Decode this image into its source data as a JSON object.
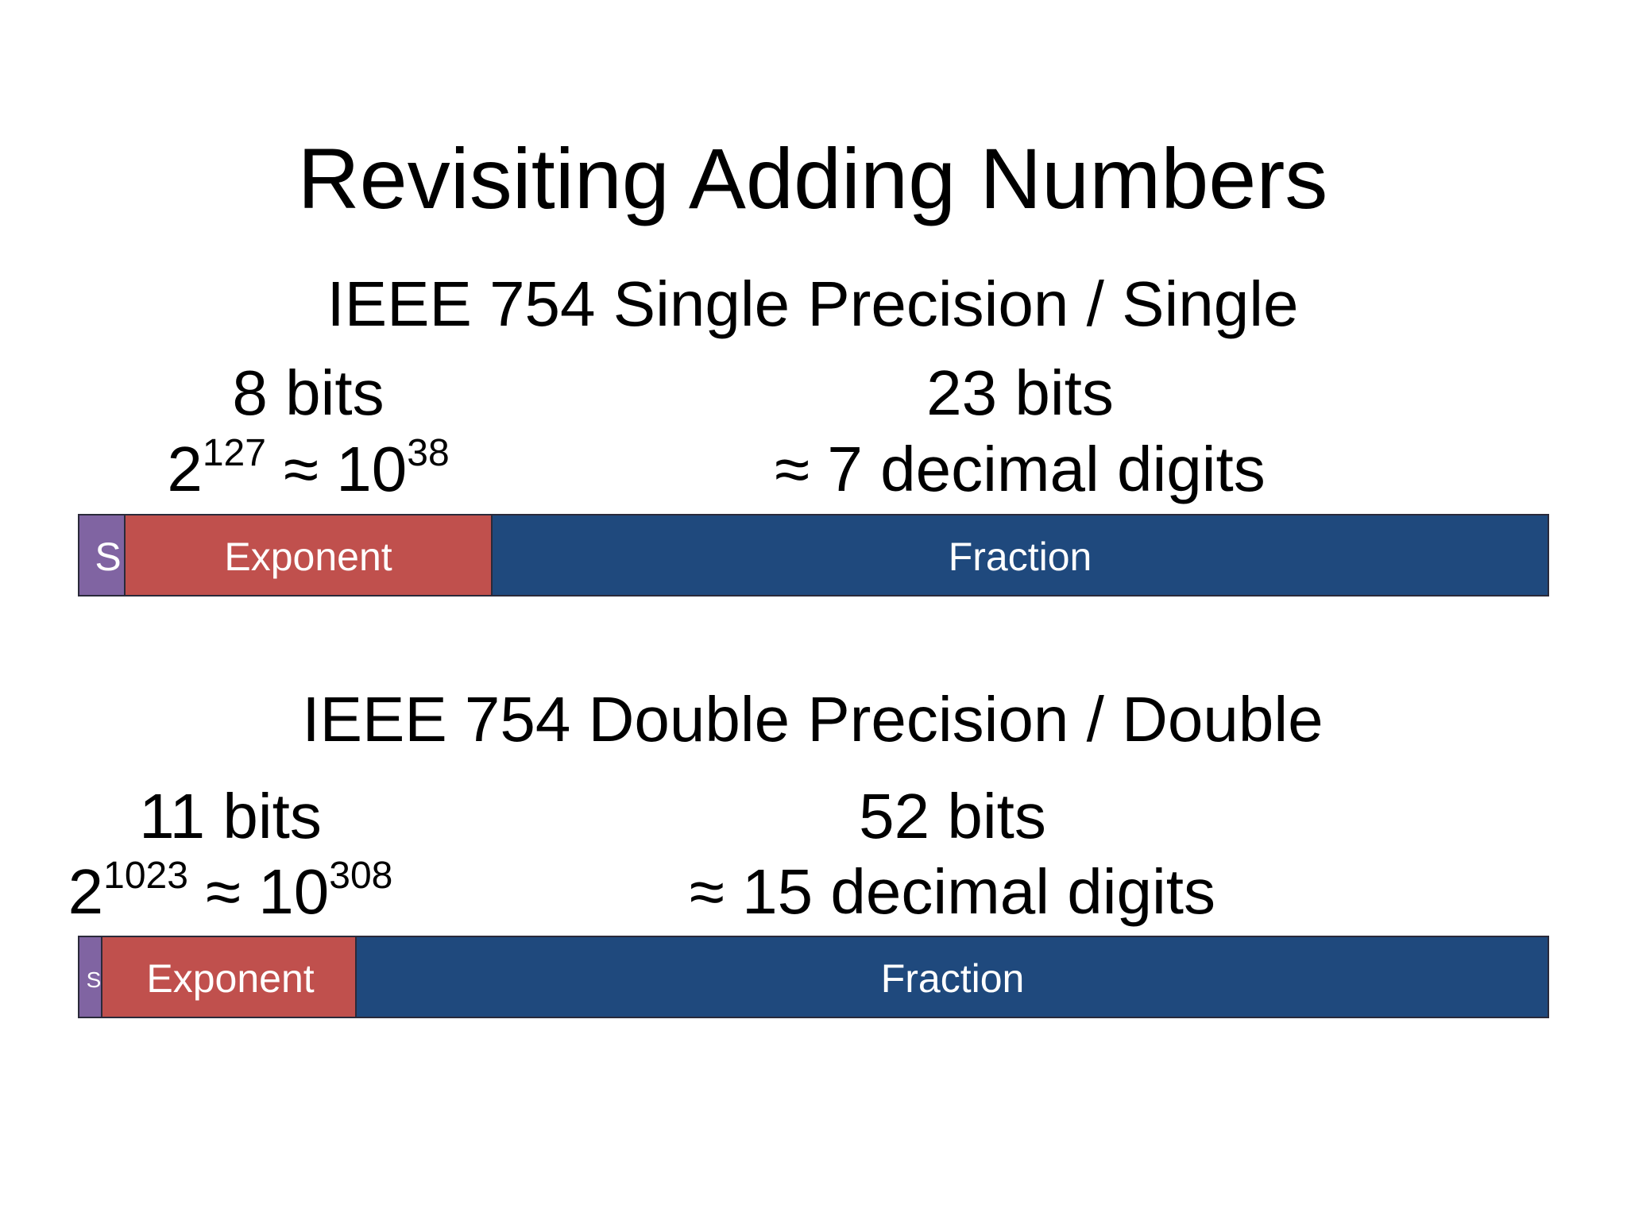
{
  "title": "Revisiting Adding Numbers",
  "sections": [
    {
      "heading": "IEEE 754 Single Precision / Single",
      "exponent": {
        "bits": "8 bits",
        "range": {
          "base": "2",
          "power": "127",
          "approx": " ≈ 10",
          "approx_power": "38"
        }
      },
      "fraction": {
        "bits": "23 bits",
        "precision": "≈ 7 decimal digits"
      },
      "bar": {
        "sign": "S",
        "exponent": "Exponent",
        "fraction": "Fraction"
      }
    },
    {
      "heading": "IEEE 754 Double Precision / Double",
      "exponent": {
        "bits": "11 bits",
        "range": {
          "base": "2",
          "power": "1023",
          "approx": " ≈ 10",
          "approx_power": "308"
        }
      },
      "fraction": {
        "bits": "52 bits",
        "precision": "≈ 15 decimal digits"
      },
      "bar": {
        "sign": "S",
        "exponent": "Exponent",
        "fraction": "Fraction"
      }
    }
  ]
}
